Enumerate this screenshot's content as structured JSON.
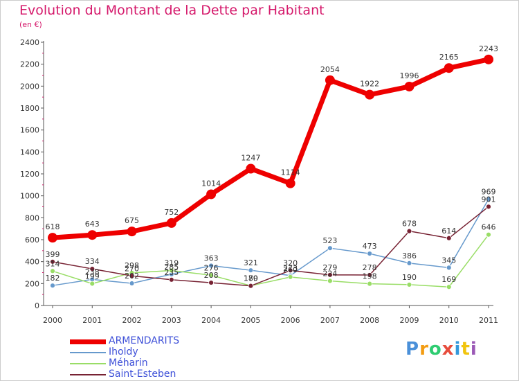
{
  "title": "Evolution du Montant de la Dette par Habitant",
  "unit_note": "(en €)",
  "chart_data": {
    "type": "line",
    "title": "Evolution du Montant de la Dette par Habitant",
    "ylabel": "(en €)",
    "x": [
      "2000",
      "2001",
      "2002",
      "2003",
      "2004",
      "2005",
      "2006",
      "2007",
      "2008",
      "2009",
      "2010",
      "2011"
    ],
    "ylim": [
      0,
      2400
    ],
    "yticks": [
      0,
      200,
      400,
      600,
      800,
      1000,
      1200,
      1400,
      1600,
      1800,
      2000,
      2200,
      2400
    ],
    "grid": false,
    "legend_position": "bottom-left",
    "series": [
      {
        "name": "ARMENDARITS",
        "color": "#ee0000",
        "values": [
          618,
          643,
          675,
          752,
          1014,
          1247,
          1114,
          2054,
          1922,
          1996,
          2165,
          2243
        ]
      },
      {
        "name": "Iholdy",
        "color": "#6699cc",
        "values": [
          182,
          238,
          202,
          285,
          363,
          321,
          273,
          523,
          473,
          386,
          345,
          969
        ]
      },
      {
        "name": "Méharin",
        "color": "#99dd66",
        "values": [
          314,
          199,
          298,
          319,
          276,
          180,
          260,
          224,
          198,
          190,
          169,
          646
        ]
      },
      {
        "name": "Saint-Esteben",
        "color": "#772233",
        "values": [
          399,
          334,
          270,
          235,
          208,
          179,
          320,
          279,
          278,
          678,
          614,
          901
        ]
      }
    ]
  },
  "logo": {
    "letters": [
      {
        "ch": "P",
        "color": "#4a90d9"
      },
      {
        "ch": "r",
        "color": "#f39c12"
      },
      {
        "ch": "o",
        "color": "#2ecc71"
      },
      {
        "ch": "x",
        "color": "#e74c3c"
      },
      {
        "ch": "i",
        "color": "#3498db"
      },
      {
        "ch": "t",
        "color": "#f1c40f"
      },
      {
        "ch": "i",
        "color": "#9b59b6"
      }
    ]
  }
}
